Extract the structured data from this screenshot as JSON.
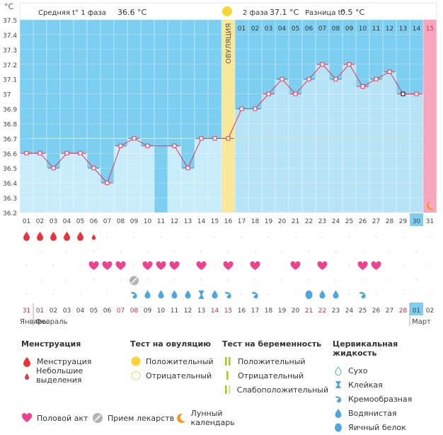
{
  "header": {
    "phase1_label": "Средняя t° 1 фаза",
    "phase1_value": "36.6 °C",
    "phase2_label": "2 фаза",
    "phase2_value": "37.1 °C",
    "diff_label": "Разница t°",
    "diff_value": "0.5 °C",
    "unit": "°C",
    "ovulation_label": "ОВУЛЯЦИЯ"
  },
  "chart_data": {
    "type": "line",
    "x": [
      "01",
      "02",
      "03",
      "04",
      "05",
      "06",
      "07",
      "08",
      "09",
      "10",
      "11",
      "12",
      "13",
      "14",
      "15",
      "16",
      "17",
      "18",
      "19",
      "20",
      "21",
      "22",
      "23",
      "24",
      "25",
      "26",
      "27",
      "28",
      "29",
      "30",
      "31"
    ],
    "temperatures": [
      36.6,
      36.6,
      36.5,
      36.6,
      36.6,
      36.5,
      36.4,
      36.65,
      36.7,
      36.65,
      null,
      36.65,
      36.5,
      36.7,
      36.7,
      36.7,
      36.9,
      36.9,
      37.0,
      37.1,
      37.0,
      37.1,
      37.2,
      37.1,
      37.2,
      37.05,
      37.1,
      37.15,
      37.0,
      37.0,
      null
    ],
    "ylim": [
      36.2,
      37.5
    ],
    "y_ticks": [
      "36.2",
      "36.3",
      "36.4",
      "36.5",
      "36.6",
      "36.7",
      "36.8",
      "36.9",
      "37",
      "37.1",
      "37.2",
      "37.3",
      "37.4",
      "37.5"
    ],
    "coverline": 36.7,
    "ovulation_day": 16,
    "phase2_days": [
      "01",
      "02",
      "03",
      "04",
      "05",
      "06",
      "07",
      "08",
      "09",
      "10",
      "11",
      "12",
      "13",
      "14"
    ],
    "menstruation_day": "15",
    "today_index": 30,
    "menstruation": [
      "big",
      "big",
      "big",
      "big",
      "big",
      "small"
    ],
    "intercourse_days": [
      6,
      7,
      8,
      10,
      11,
      12,
      14,
      16,
      18,
      21,
      23,
      26,
      27
    ],
    "medication_days": [
      9
    ],
    "cervical": [
      {
        "day": 9,
        "type": "creamy"
      },
      {
        "day": 10,
        "type": "watery"
      },
      {
        "day": 11,
        "type": "watery"
      },
      {
        "day": 12,
        "type": "watery"
      },
      {
        "day": 13,
        "type": "watery"
      },
      {
        "day": 14,
        "type": "sticky"
      },
      {
        "day": 15,
        "type": "watery"
      },
      {
        "day": 16,
        "type": "creamy"
      },
      {
        "day": 18,
        "type": "creamy"
      },
      {
        "day": 22,
        "type": "egg"
      },
      {
        "day": 23,
        "type": "watery"
      },
      {
        "day": 24,
        "type": "watery"
      },
      {
        "day": 26,
        "type": "creamy"
      }
    ],
    "calendar": {
      "dates": [
        "31",
        "01",
        "02",
        "03",
        "04",
        "05",
        "06",
        "07",
        "08",
        "09",
        "10",
        "11",
        "12",
        "13",
        "14",
        "15",
        "16",
        "17",
        "18",
        "19",
        "20",
        "21",
        "22",
        "23",
        "24",
        "25",
        "26",
        "27",
        "28",
        "01",
        "02"
      ],
      "weekend_indices": [
        0,
        1,
        7,
        8,
        14,
        15,
        21,
        22,
        28
      ],
      "today_index": 29,
      "month_labels": [
        "Январь",
        "Февраль",
        "Март"
      ]
    }
  },
  "legend": {
    "menstruation": {
      "title": "Менструация",
      "items": [
        "Менструация",
        "Небольшие выделения"
      ]
    },
    "ovulation_test": {
      "title": "Тест на овуляцию",
      "items": [
        "Положительный",
        "Отрицательный"
      ]
    },
    "pregnancy_test": {
      "title": "Тест на беременность",
      "items": [
        "Положительный",
        "Отрицательный",
        "Слабоположительный"
      ]
    },
    "cervical": {
      "title": "Цервикальная жидкость",
      "items": [
        "Сухо",
        "Клейкая",
        "Кремообразная",
        "Водянистая",
        "Яичный белок"
      ]
    },
    "bottom": [
      "Половой акт",
      "Прием лекарств",
      "Лунный календарь"
    ]
  },
  "colors": {
    "phase1_bg": "#c9ecfa",
    "phase2_bg": "#b7e3f7",
    "header_bg": "#7ccff0",
    "ovulation": "#f9e89a",
    "menstruation": "#f7a7bd",
    "line": "#e0365a",
    "drop_red": "#e8333e",
    "heart": "#f0418f",
    "water": "#4da6e0",
    "moon": "#f7941d"
  }
}
